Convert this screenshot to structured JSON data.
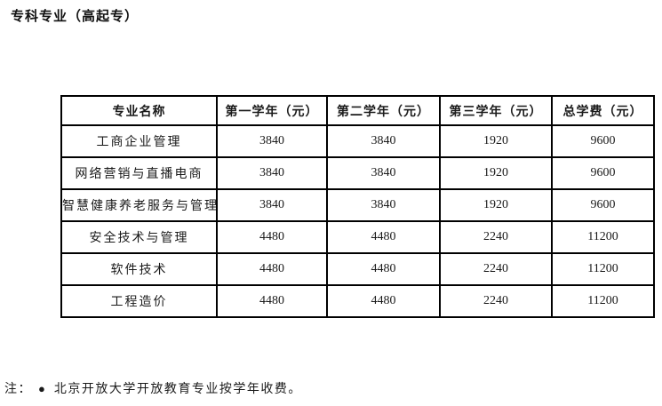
{
  "page": {
    "title": "专科专业（高起专）"
  },
  "table": {
    "columns": [
      "专业名称",
      "第一学年（元）",
      "第二学年（元）",
      "第三学年（元）",
      "总学费（元）"
    ],
    "rows": [
      [
        "工商企业管理",
        "3840",
        "3840",
        "1920",
        "9600"
      ],
      [
        "网络营销与直播电商",
        "3840",
        "3840",
        "1920",
        "9600"
      ],
      [
        "智慧健康养老服务与管理",
        "3840",
        "3840",
        "1920",
        "9600"
      ],
      [
        "安全技术与管理",
        "4480",
        "4480",
        "2240",
        "11200"
      ],
      [
        "软件技术",
        "4480",
        "4480",
        "2240",
        "11200"
      ],
      [
        "工程造价",
        "4480",
        "4480",
        "2240",
        "11200"
      ]
    ]
  },
  "note": {
    "prefix": "注：",
    "bullet": "●",
    "text": "北京开放大学开放教育专业按学年收费。"
  },
  "colors": {
    "text": "#1a1a1a",
    "border": "#000000",
    "background": "#ffffff"
  }
}
